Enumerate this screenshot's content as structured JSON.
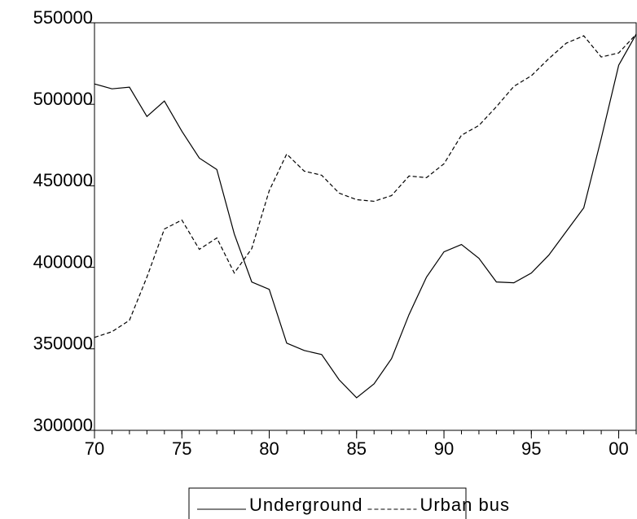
{
  "chart_data": {
    "type": "line",
    "x": [
      70,
      71,
      72,
      73,
      74,
      75,
      76,
      77,
      78,
      79,
      80,
      81,
      82,
      83,
      84,
      85,
      86,
      87,
      88,
      89,
      90,
      91,
      92,
      93,
      94,
      95,
      96,
      97,
      98,
      99,
      100,
      101
    ],
    "series": [
      {
        "name": "Underground",
        "color": "#000000",
        "line_style": "solid",
        "values": [
          512500,
          509500,
          510500,
          492500,
          502000,
          483500,
          467000,
          460000,
          420500,
          391000,
          386500,
          353500,
          349000,
          346500,
          331000,
          320000,
          328500,
          344000,
          371000,
          394000,
          409500,
          414000,
          405500,
          391000,
          390500,
          396500,
          407500,
          422000,
          436500,
          479000,
          524000,
          543000
        ]
      },
      {
        "name": "Urban bus",
        "color": "#000000",
        "line_style": "dashed",
        "values": [
          357000,
          360500,
          367500,
          394000,
          423500,
          429000,
          411000,
          418000,
          396500,
          411500,
          447000,
          469500,
          459000,
          456500,
          445500,
          441500,
          440500,
          444000,
          456000,
          455000,
          463500,
          481000,
          487000,
          498500,
          511000,
          517500,
          528000,
          537500,
          542000,
          529000,
          531500,
          543000
        ]
      }
    ],
    "xlim": [
      70,
      101
    ],
    "xticks": [
      70,
      75,
      80,
      85,
      90,
      95,
      {
        "value": 100,
        "label": "00"
      }
    ],
    "ylim": [
      300000,
      550000
    ],
    "yticks": [
      300000,
      350000,
      400000,
      450000,
      500000,
      550000
    ],
    "legend": "bottom"
  }
}
